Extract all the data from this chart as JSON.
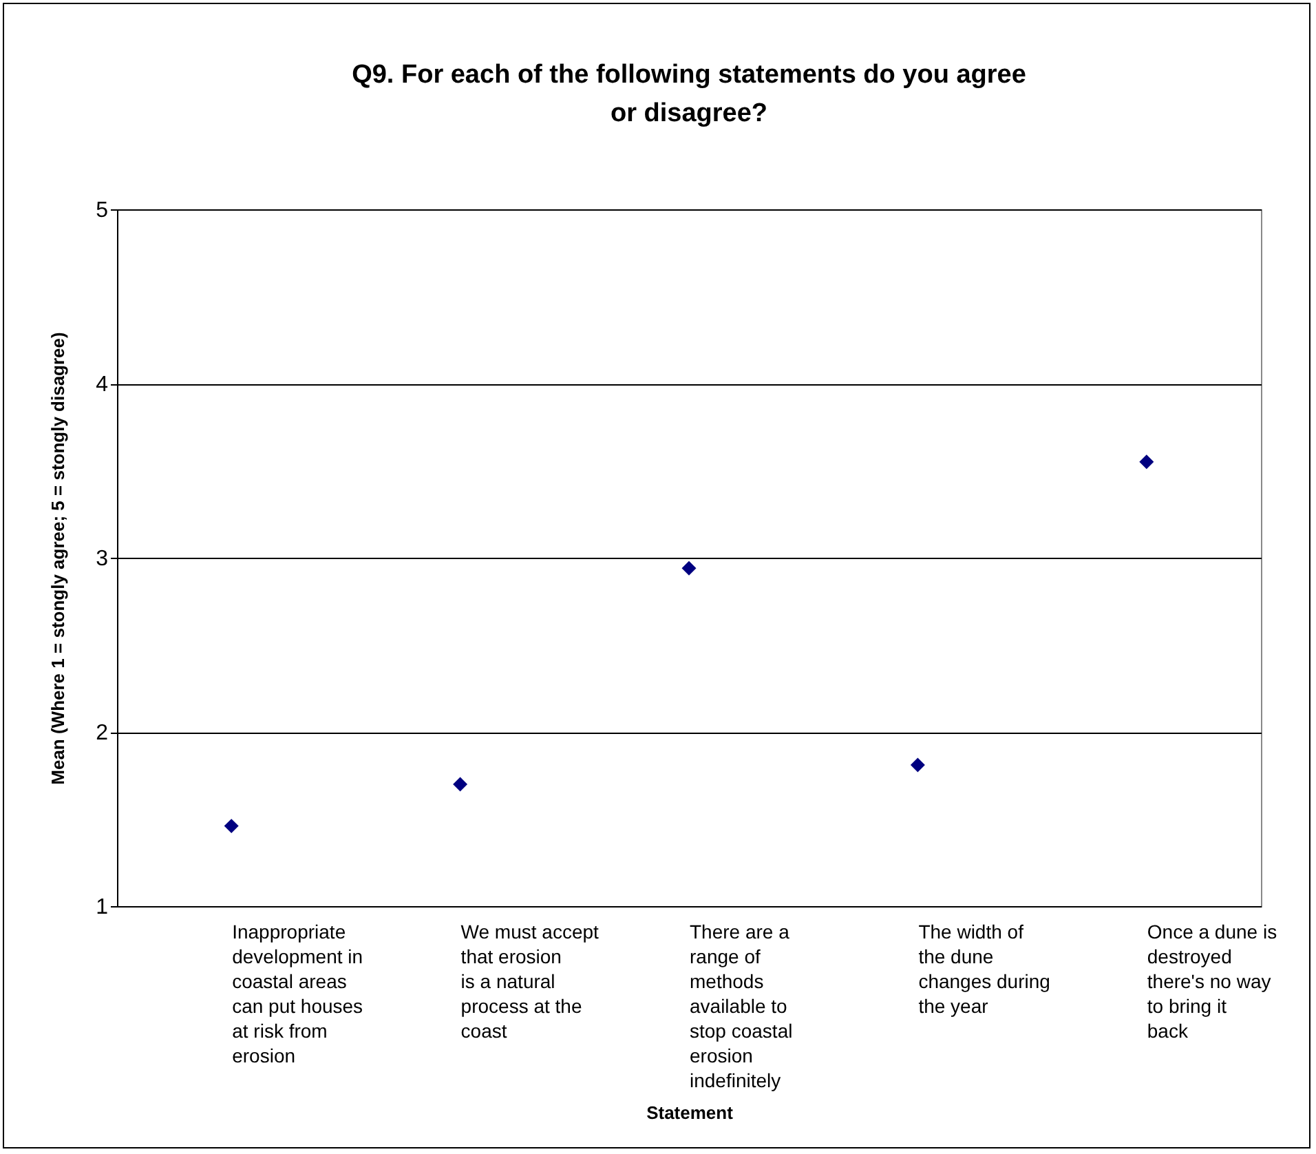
{
  "chart_data": {
    "type": "scatter",
    "title": "Q9. For each of the following statements do you agree or disagree?",
    "xlabel": "Statement",
    "ylabel": "Mean (Where 1 = stongly agree; 5 = stongly disagree)",
    "categories": [
      "Inappropriate development in coastal areas can put houses at risk from erosion",
      "We must accept that erosion is a natural process at the coast",
      "There are a range of methods available to stop coastal erosion indefinitely",
      "The width of the dune changes during the year",
      "Once a dune is destroyed there's no way to bring it back"
    ],
    "series": [
      {
        "color": "#000080",
        "values": [
          1.46,
          1.7,
          2.94,
          1.81,
          3.55
        ]
      }
    ],
    "ylim": [
      1,
      5
    ],
    "yticks": [
      1,
      2,
      3,
      4,
      5
    ],
    "grid": "y",
    "marker": "diamond",
    "legend": false
  }
}
